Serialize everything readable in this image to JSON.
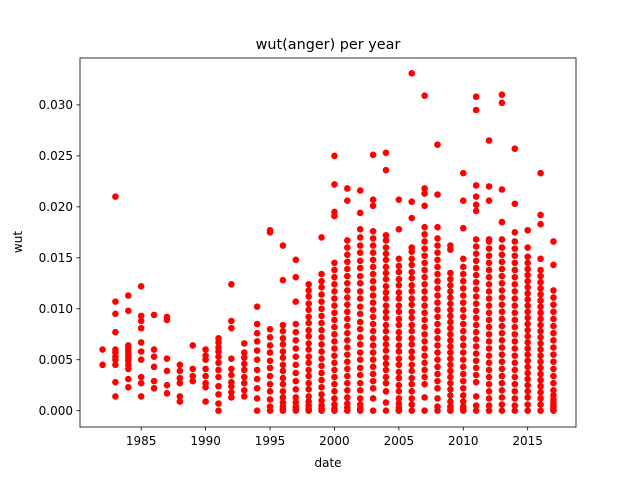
{
  "chart_data": {
    "type": "scatter",
    "title": "wut(anger) per year",
    "xlabel": "date",
    "ylabel": "wut",
    "xlim": [
      1980.25,
      2018.75
    ],
    "ylim": [
      -0.0016,
      0.0346
    ],
    "xticks": [
      1985,
      1990,
      1995,
      2000,
      2005,
      2010,
      2015
    ],
    "xtick_labels": [
      "1985",
      "1990",
      "1995",
      "2000",
      "2005",
      "2010",
      "2015"
    ],
    "yticks": [
      0.0,
      0.005,
      0.01,
      0.015,
      0.02,
      0.025,
      0.03
    ],
    "ytick_labels": [
      "0.000",
      "0.005",
      "0.010",
      "0.015",
      "0.020",
      "0.025",
      "0.030"
    ],
    "marker_color": "#ff0000",
    "grid": false,
    "legend": "none",
    "x": [
      1982,
      1982,
      1983,
      1983,
      1983,
      1983,
      1983,
      1983,
      1983,
      1983,
      1983,
      1983,
      1983,
      1984,
      1984,
      1984,
      1984,
      1984,
      1984,
      1984,
      1984,
      1984,
      1984,
      1984,
      1984,
      1985,
      1985,
      1985,
      1985,
      1985,
      1985,
      1985,
      1985,
      1985,
      1985,
      1986,
      1986,
      1986,
      1986,
      1986,
      1986,
      1987,
      1987,
      1987,
      1987,
      1987,
      1987,
      1988,
      1988,
      1988,
      1988,
      1988,
      1988,
      1989,
      1989,
      1989,
      1989,
      1990,
      1990,
      1990,
      1990,
      1990,
      1990,
      1990,
      1990,
      1991,
      1991,
      1991,
      1991,
      1991,
      1991,
      1991,
      1991,
      1991,
      1991,
      1991,
      1991,
      1992,
      1992,
      1992,
      1992,
      1992,
      1992,
      1992,
      1992,
      1992,
      1992,
      1993,
      1993,
      1993,
      1993,
      1993,
      1993,
      1993,
      1993,
      1993,
      1994,
      1994,
      1994,
      1994,
      1994,
      1994,
      1994,
      1994,
      1994,
      1994,
      1994,
      1995,
      1995,
      1995,
      1995,
      1995,
      1995,
      1995,
      1995,
      1995,
      1995,
      1995,
      1995,
      1995,
      1995,
      1996,
      1996,
      1996,
      1996,
      1996,
      1996,
      1996,
      1996,
      1996,
      1996,
      1996,
      1996,
      1996,
      1996,
      1996,
      1996,
      1996,
      1996,
      1997,
      1997,
      1997,
      1997,
      1997,
      1997,
      1997,
      1997,
      1997,
      1997,
      1997,
      1997,
      1997,
      1997,
      1997,
      1997,
      1997,
      1998,
      1998,
      1998,
      1998,
      1998,
      1998,
      1998,
      1998,
      1998,
      1998,
      1998,
      1998,
      1998,
      1998,
      1998,
      1998,
      1998,
      1998,
      1998,
      1998,
      1998,
      1998,
      1999,
      1999,
      1999,
      1999,
      1999,
      1999,
      1999,
      1999,
      1999,
      1999,
      1999,
      1999,
      1999,
      1999,
      1999,
      1999,
      1999,
      1999,
      1999,
      1999,
      1999,
      1999,
      1999,
      2000,
      2000,
      2000,
      2000,
      2000,
      2000,
      2000,
      2000,
      2000,
      2000,
      2000,
      2000,
      2000,
      2000,
      2000,
      2000,
      2000,
      2000,
      2000,
      2000,
      2000,
      2000,
      2000,
      2000,
      2000,
      2000,
      2000,
      2001,
      2001,
      2001,
      2001,
      2001,
      2001,
      2001,
      2001,
      2001,
      2001,
      2001,
      2001,
      2001,
      2001,
      2001,
      2001,
      2001,
      2001,
      2001,
      2001,
      2001,
      2001,
      2001,
      2001,
      2001,
      2001,
      2001,
      2001,
      2002,
      2002,
      2002,
      2002,
      2002,
      2002,
      2002,
      2002,
      2002,
      2002,
      2002,
      2002,
      2002,
      2002,
      2002,
      2002,
      2002,
      2002,
      2002,
      2002,
      2002,
      2002,
      2002,
      2002,
      2002,
      2002,
      2002,
      2002,
      2003,
      2003,
      2003,
      2003,
      2003,
      2003,
      2003,
      2003,
      2003,
      2003,
      2003,
      2003,
      2003,
      2003,
      2003,
      2003,
      2003,
      2003,
      2003,
      2003,
      2003,
      2003,
      2003,
      2003,
      2003,
      2003,
      2003,
      2003,
      2004,
      2004,
      2004,
      2004,
      2004,
      2004,
      2004,
      2004,
      2004,
      2004,
      2004,
      2004,
      2004,
      2004,
      2004,
      2004,
      2004,
      2004,
      2004,
      2004,
      2004,
      2004,
      2004,
      2004,
      2004,
      2004,
      2004,
      2004,
      2004,
      2005,
      2005,
      2005,
      2005,
      2005,
      2005,
      2005,
      2005,
      2005,
      2005,
      2005,
      2005,
      2005,
      2005,
      2005,
      2005,
      2005,
      2005,
      2005,
      2005,
      2005,
      2005,
      2005,
      2005,
      2005,
      2005,
      2005,
      2005,
      2006,
      2006,
      2006,
      2006,
      2006,
      2006,
      2006,
      2006,
      2006,
      2006,
      2006,
      2006,
      2006,
      2006,
      2006,
      2006,
      2006,
      2006,
      2006,
      2006,
      2006,
      2006,
      2006,
      2006,
      2006,
      2006,
      2006,
      2006,
      2006,
      2007,
      2007,
      2007,
      2007,
      2007,
      2007,
      2007,
      2007,
      2007,
      2007,
      2007,
      2007,
      2007,
      2007,
      2007,
      2007,
      2007,
      2007,
      2007,
      2007,
      2007,
      2007,
      2007,
      2007,
      2007,
      2007,
      2007,
      2007,
      2007,
      2008,
      2008,
      2008,
      2008,
      2008,
      2008,
      2008,
      2008,
      2008,
      2008,
      2008,
      2008,
      2008,
      2008,
      2008,
      2008,
      2008,
      2008,
      2008,
      2008,
      2008,
      2008,
      2008,
      2008,
      2008,
      2008,
      2008,
      2008,
      2009,
      2009,
      2009,
      2009,
      2009,
      2009,
      2009,
      2009,
      2009,
      2009,
      2009,
      2009,
      2009,
      2009,
      2009,
      2009,
      2009,
      2009,
      2009,
      2009,
      2009,
      2009,
      2009,
      2009,
      2009,
      2009,
      2009,
      2010,
      2010,
      2010,
      2010,
      2010,
      2010,
      2010,
      2010,
      2010,
      2010,
      2010,
      2010,
      2010,
      2010,
      2010,
      2010,
      2010,
      2010,
      2010,
      2010,
      2010,
      2010,
      2010,
      2010,
      2010,
      2010,
      2010,
      2010,
      2011,
      2011,
      2011,
      2011,
      2011,
      2011,
      2011,
      2011,
      2011,
      2011,
      2011,
      2011,
      2011,
      2011,
      2011,
      2011,
      2011,
      2011,
      2011,
      2011,
      2011,
      2011,
      2011,
      2011,
      2011,
      2011,
      2011,
      2011,
      2011,
      2011,
      2012,
      2012,
      2012,
      2012,
      2012,
      2012,
      2012,
      2012,
      2012,
      2012,
      2012,
      2012,
      2012,
      2012,
      2012,
      2012,
      2012,
      2012,
      2012,
      2012,
      2012,
      2012,
      2012,
      2012,
      2012,
      2012,
      2012,
      2012,
      2012,
      2013,
      2013,
      2013,
      2013,
      2013,
      2013,
      2013,
      2013,
      2013,
      2013,
      2013,
      2013,
      2013,
      2013,
      2013,
      2013,
      2013,
      2013,
      2013,
      2013,
      2013,
      2013,
      2013,
      2013,
      2013,
      2013,
      2013,
      2013,
      2013,
      2014,
      2014,
      2014,
      2014,
      2014,
      2014,
      2014,
      2014,
      2014,
      2014,
      2014,
      2014,
      2014,
      2014,
      2014,
      2014,
      2014,
      2014,
      2014,
      2014,
      2014,
      2014,
      2014,
      2014,
      2014,
      2014,
      2014,
      2014,
      2015,
      2015,
      2015,
      2015,
      2015,
      2015,
      2015,
      2015,
      2015,
      2015,
      2015,
      2015,
      2015,
      2015,
      2015,
      2015,
      2015,
      2015,
      2015,
      2015,
      2015,
      2015,
      2015,
      2015,
      2015,
      2015,
      2015,
      2015,
      2016,
      2016,
      2016,
      2016,
      2016,
      2016,
      2016,
      2016,
      2016,
      2016,
      2016,
      2016,
      2016,
      2016,
      2016,
      2016,
      2016,
      2016,
      2016,
      2016,
      2016,
      2016,
      2016,
      2016,
      2016,
      2016,
      2016,
      2016,
      2017,
      2017,
      2017,
      2017,
      2017,
      2017,
      2017,
      2017,
      2017,
      2017,
      2017,
      2017,
      2017,
      2017,
      2017,
      2017,
      2017,
      2017,
      2017,
      2017,
      2017,
      2017,
      2017,
      2017
    ],
    "y": [
      0.006,
      0.0045,
      0.021,
      0.0107,
      0.0095,
      0.0077,
      0.006,
      0.0057,
      0.0053,
      0.005,
      0.0045,
      0.0028,
      0.0014,
      0.0113,
      0.0098,
      0.0064,
      0.0061,
      0.0058,
      0.0055,
      0.0052,
      0.0049,
      0.0045,
      0.0041,
      0.0031,
      0.0023,
      0.0122,
      0.0093,
      0.0088,
      0.0081,
      0.0067,
      0.0058,
      0.005,
      0.0033,
      0.0027,
      0.0014,
      0.0094,
      0.006,
      0.0053,
      0.0043,
      0.0029,
      0.0022,
      0.0092,
      0.0089,
      0.0051,
      0.0039,
      0.0025,
      0.0017,
      0.0045,
      0.0039,
      0.0032,
      0.0027,
      0.0014,
      0.0009,
      0.0064,
      0.0041,
      0.0034,
      0.0029,
      0.006,
      0.0054,
      0.005,
      0.0041,
      0.0034,
      0.0027,
      0.0023,
      0.0009,
      0.0071,
      0.0067,
      0.0062,
      0.0058,
      0.0053,
      0.0047,
      0.004,
      0.0033,
      0.0024,
      0.0016,
      0.0007,
      0.0,
      0.0124,
      0.0088,
      0.0081,
      0.0051,
      0.0041,
      0.0035,
      0.0028,
      0.0024,
      0.0018,
      0.0013,
      0.0066,
      0.0057,
      0.0052,
      0.0046,
      0.004,
      0.0033,
      0.0027,
      0.002,
      0.0014,
      0.0102,
      0.0085,
      0.0076,
      0.0068,
      0.0059,
      0.005,
      0.004,
      0.0031,
      0.0022,
      0.0012,
      0.0,
      0.0177,
      0.0175,
      0.008,
      0.0072,
      0.0064,
      0.0057,
      0.0049,
      0.0042,
      0.0034,
      0.0026,
      0.0019,
      0.0011,
      0.0004,
      0.0,
      0.0162,
      0.0128,
      0.0084,
      0.0078,
      0.0071,
      0.0065,
      0.0058,
      0.0052,
      0.0045,
      0.0039,
      0.0032,
      0.0026,
      0.0019,
      0.0013,
      0.0008,
      0.0004,
      0.0001,
      0.0,
      0.0148,
      0.0131,
      0.0107,
      0.0085,
      0.0077,
      0.0069,
      0.0061,
      0.0053,
      0.0045,
      0.0037,
      0.0029,
      0.0021,
      0.0013,
      0.0008,
      0.0004,
      0.0001,
      0.0,
      0.0124,
      0.0118,
      0.0112,
      0.0105,
      0.0099,
      0.0092,
      0.0086,
      0.0079,
      0.0073,
      0.0066,
      0.006,
      0.0053,
      0.0047,
      0.004,
      0.0034,
      0.0027,
      0.0021,
      0.0014,
      0.0009,
      0.0005,
      0.0002,
      0.0,
      0.017,
      0.0134,
      0.0127,
      0.0121,
      0.0114,
      0.0107,
      0.01,
      0.0093,
      0.0086,
      0.0079,
      0.0072,
      0.0065,
      0.0058,
      0.0051,
      0.0044,
      0.0037,
      0.003,
      0.0023,
      0.0016,
      0.001,
      0.0005,
      0.0002,
      0.0,
      0.025,
      0.0222,
      0.0195,
      0.0191,
      0.0145,
      0.0138,
      0.0131,
      0.0124,
      0.0117,
      0.011,
      0.0103,
      0.0096,
      0.0089,
      0.0082,
      0.0075,
      0.0068,
      0.0061,
      0.0054,
      0.0047,
      0.004,
      0.0033,
      0.0026,
      0.0019,
      0.0012,
      0.0006,
      0.0002,
      0.0,
      0.0218,
      0.0206,
      0.0167,
      0.016,
      0.0153,
      0.0146,
      0.0139,
      0.0132,
      0.0125,
      0.0118,
      0.0111,
      0.0104,
      0.0097,
      0.009,
      0.0083,
      0.0076,
      0.0069,
      0.0062,
      0.0055,
      0.0048,
      0.0041,
      0.0034,
      0.0027,
      0.002,
      0.0013,
      0.0007,
      0.0003,
      0.0,
      0.0216,
      0.0194,
      0.0178,
      0.017,
      0.0162,
      0.0155,
      0.0147,
      0.014,
      0.0132,
      0.0125,
      0.0117,
      0.011,
      0.0102,
      0.0095,
      0.0087,
      0.008,
      0.0072,
      0.0065,
      0.0057,
      0.005,
      0.0042,
      0.0035,
      0.0027,
      0.002,
      0.0012,
      0.0006,
      0.0002,
      0.0,
      0.0251,
      0.0207,
      0.0201,
      0.0176,
      0.0169,
      0.0162,
      0.0155,
      0.0148,
      0.0141,
      0.0134,
      0.0127,
      0.012,
      0.0113,
      0.0106,
      0.0099,
      0.0092,
      0.0085,
      0.0078,
      0.0071,
      0.0064,
      0.0057,
      0.005,
      0.0043,
      0.0036,
      0.0029,
      0.0022,
      0.0012,
      0.0,
      0.0253,
      0.0236,
      0.0172,
      0.0167,
      0.016,
      0.0154,
      0.0148,
      0.0141,
      0.0135,
      0.0129,
      0.0122,
      0.0116,
      0.011,
      0.0103,
      0.0097,
      0.0091,
      0.0084,
      0.0078,
      0.0071,
      0.0065,
      0.0059,
      0.0052,
      0.0046,
      0.004,
      0.0033,
      0.0027,
      0.0019,
      0.0008,
      0.0,
      0.0207,
      0.0178,
      0.0149,
      0.0142,
      0.0136,
      0.0129,
      0.0123,
      0.0116,
      0.011,
      0.0103,
      0.0097,
      0.009,
      0.0084,
      0.0077,
      0.0071,
      0.0064,
      0.0058,
      0.0051,
      0.0045,
      0.0038,
      0.0032,
      0.0025,
      0.0019,
      0.0012,
      0.0007,
      0.0003,
      0.0001,
      0.0,
      0.0331,
      0.0205,
      0.0189,
      0.016,
      0.0156,
      0.0149,
      0.0143,
      0.0136,
      0.013,
      0.0123,
      0.0117,
      0.011,
      0.0104,
      0.0097,
      0.0091,
      0.0084,
      0.0078,
      0.0071,
      0.0065,
      0.0058,
      0.0052,
      0.0045,
      0.0039,
      0.0032,
      0.0026,
      0.0019,
      0.0012,
      0.0006,
      0.0,
      0.0309,
      0.0218,
      0.0213,
      0.0201,
      0.018,
      0.0173,
      0.0166,
      0.0159,
      0.0152,
      0.0145,
      0.0138,
      0.0131,
      0.0124,
      0.0117,
      0.011,
      0.0103,
      0.0096,
      0.0089,
      0.0082,
      0.0075,
      0.0068,
      0.0061,
      0.0054,
      0.0047,
      0.004,
      0.0033,
      0.0026,
      0.0013,
      0.0,
      0.0261,
      0.0212,
      0.018,
      0.0169,
      0.0162,
      0.0155,
      0.0148,
      0.0141,
      0.0134,
      0.0127,
      0.012,
      0.0113,
      0.0106,
      0.0099,
      0.0092,
      0.0085,
      0.0078,
      0.0071,
      0.0064,
      0.0057,
      0.005,
      0.0043,
      0.0036,
      0.0029,
      0.0022,
      0.0012,
      0.0004,
      0.0,
      0.0162,
      0.0158,
      0.0135,
      0.0129,
      0.0123,
      0.0117,
      0.0111,
      0.0105,
      0.0099,
      0.0093,
      0.0087,
      0.0081,
      0.0075,
      0.0069,
      0.0063,
      0.0057,
      0.0051,
      0.0045,
      0.0039,
      0.0033,
      0.0027,
      0.0021,
      0.0015,
      0.0009,
      0.0004,
      0.0001,
      0.0,
      0.0233,
      0.0206,
      0.0179,
      0.0149,
      0.0141,
      0.0134,
      0.0127,
      0.012,
      0.0113,
      0.0106,
      0.0099,
      0.0092,
      0.0085,
      0.0078,
      0.0071,
      0.0064,
      0.0057,
      0.005,
      0.0043,
      0.0036,
      0.0029,
      0.0022,
      0.0015,
      0.0009,
      0.0004,
      0.0002,
      0.0001,
      0.0,
      0.0308,
      0.0295,
      0.0221,
      0.021,
      0.0202,
      0.0196,
      0.0168,
      0.0161,
      0.0154,
      0.0147,
      0.014,
      0.0133,
      0.0126,
      0.0119,
      0.0112,
      0.0105,
      0.0098,
      0.0091,
      0.0084,
      0.0077,
      0.007,
      0.0063,
      0.0056,
      0.0049,
      0.0042,
      0.0035,
      0.0028,
      0.0014,
      0.0005,
      0.0,
      0.0265,
      0.022,
      0.0206,
      0.0168,
      0.0166,
      0.0159,
      0.0152,
      0.0145,
      0.0138,
      0.0131,
      0.0124,
      0.0117,
      0.011,
      0.0103,
      0.0096,
      0.0089,
      0.0082,
      0.0075,
      0.0068,
      0.0061,
      0.0054,
      0.0047,
      0.004,
      0.0033,
      0.0026,
      0.0019,
      0.0012,
      0.0005,
      0.0,
      0.031,
      0.0302,
      0.0217,
      0.0185,
      0.0168,
      0.016,
      0.0153,
      0.0146,
      0.0139,
      0.0132,
      0.0125,
      0.0118,
      0.0111,
      0.0104,
      0.0097,
      0.009,
      0.0083,
      0.0076,
      0.0069,
      0.0062,
      0.0055,
      0.0048,
      0.0041,
      0.0034,
      0.0027,
      0.002,
      0.0013,
      0.0006,
      0.0,
      0.0257,
      0.0203,
      0.0175,
      0.0166,
      0.0159,
      0.0152,
      0.0145,
      0.0138,
      0.0131,
      0.0124,
      0.0117,
      0.011,
      0.0103,
      0.0096,
      0.0089,
      0.0082,
      0.0075,
      0.0068,
      0.0061,
      0.0054,
      0.0047,
      0.004,
      0.0033,
      0.0026,
      0.0019,
      0.0012,
      0.0005,
      0.0,
      0.0177,
      0.016,
      0.0151,
      0.0145,
      0.0139,
      0.0133,
      0.0127,
      0.0121,
      0.0115,
      0.0109,
      0.0103,
      0.0097,
      0.0091,
      0.0085,
      0.0079,
      0.0073,
      0.0067,
      0.0061,
      0.0055,
      0.0049,
      0.0043,
      0.0037,
      0.0031,
      0.0025,
      0.0019,
      0.0013,
      0.0006,
      0.0,
      0.0233,
      0.0192,
      0.0183,
      0.0149,
      0.0138,
      0.0132,
      0.0126,
      0.012,
      0.0114,
      0.0108,
      0.0102,
      0.0096,
      0.009,
      0.0084,
      0.0078,
      0.0072,
      0.0066,
      0.006,
      0.0054,
      0.0048,
      0.0042,
      0.0036,
      0.003,
      0.0024,
      0.0018,
      0.0012,
      0.0006,
      0.0,
      0.0166,
      0.0143,
      0.0118,
      0.0111,
      0.0104,
      0.0097,
      0.009,
      0.0083,
      0.0076,
      0.0069,
      0.0062,
      0.0055,
      0.0048,
      0.0041,
      0.0034,
      0.0027,
      0.002,
      0.0015,
      0.0011,
      0.0008,
      0.0005,
      0.0003,
      0.0001,
      0.0
    ]
  }
}
